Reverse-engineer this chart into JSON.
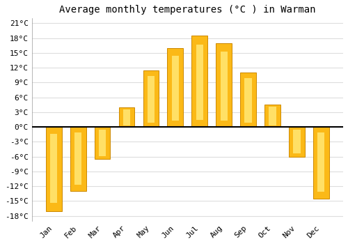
{
  "title": "Average monthly temperatures (°C ) in Warman",
  "months": [
    "Jan",
    "Feb",
    "Mar",
    "Apr",
    "May",
    "Jun",
    "Jul",
    "Aug",
    "Sep",
    "Oct",
    "Nov",
    "Dec"
  ],
  "values": [
    -17,
    -13,
    -6.5,
    4,
    11.5,
    16,
    18.5,
    17,
    11,
    4.5,
    -6,
    -14.5
  ],
  "bar_color": "#FBB917",
  "bar_edge_color": "#CC8800",
  "bar_highlight": "#FFE066",
  "ylim_min": -19,
  "ylim_max": 22,
  "yticks": [
    -18,
    -15,
    -12,
    -9,
    -6,
    -3,
    0,
    3,
    6,
    9,
    12,
    15,
    18,
    21
  ],
  "ytick_labels": [
    "-18°C",
    "-15°C",
    "-12°C",
    "-9°C",
    "-6°C",
    "-3°C",
    "0°C",
    "3°C",
    "6°C",
    "9°C",
    "12°C",
    "15°C",
    "18°C",
    "21°C"
  ],
  "grid_color": "#dddddd",
  "background_color": "#ffffff",
  "title_fontsize": 10,
  "tick_fontsize": 8,
  "font_family": "monospace",
  "bar_width": 0.65
}
